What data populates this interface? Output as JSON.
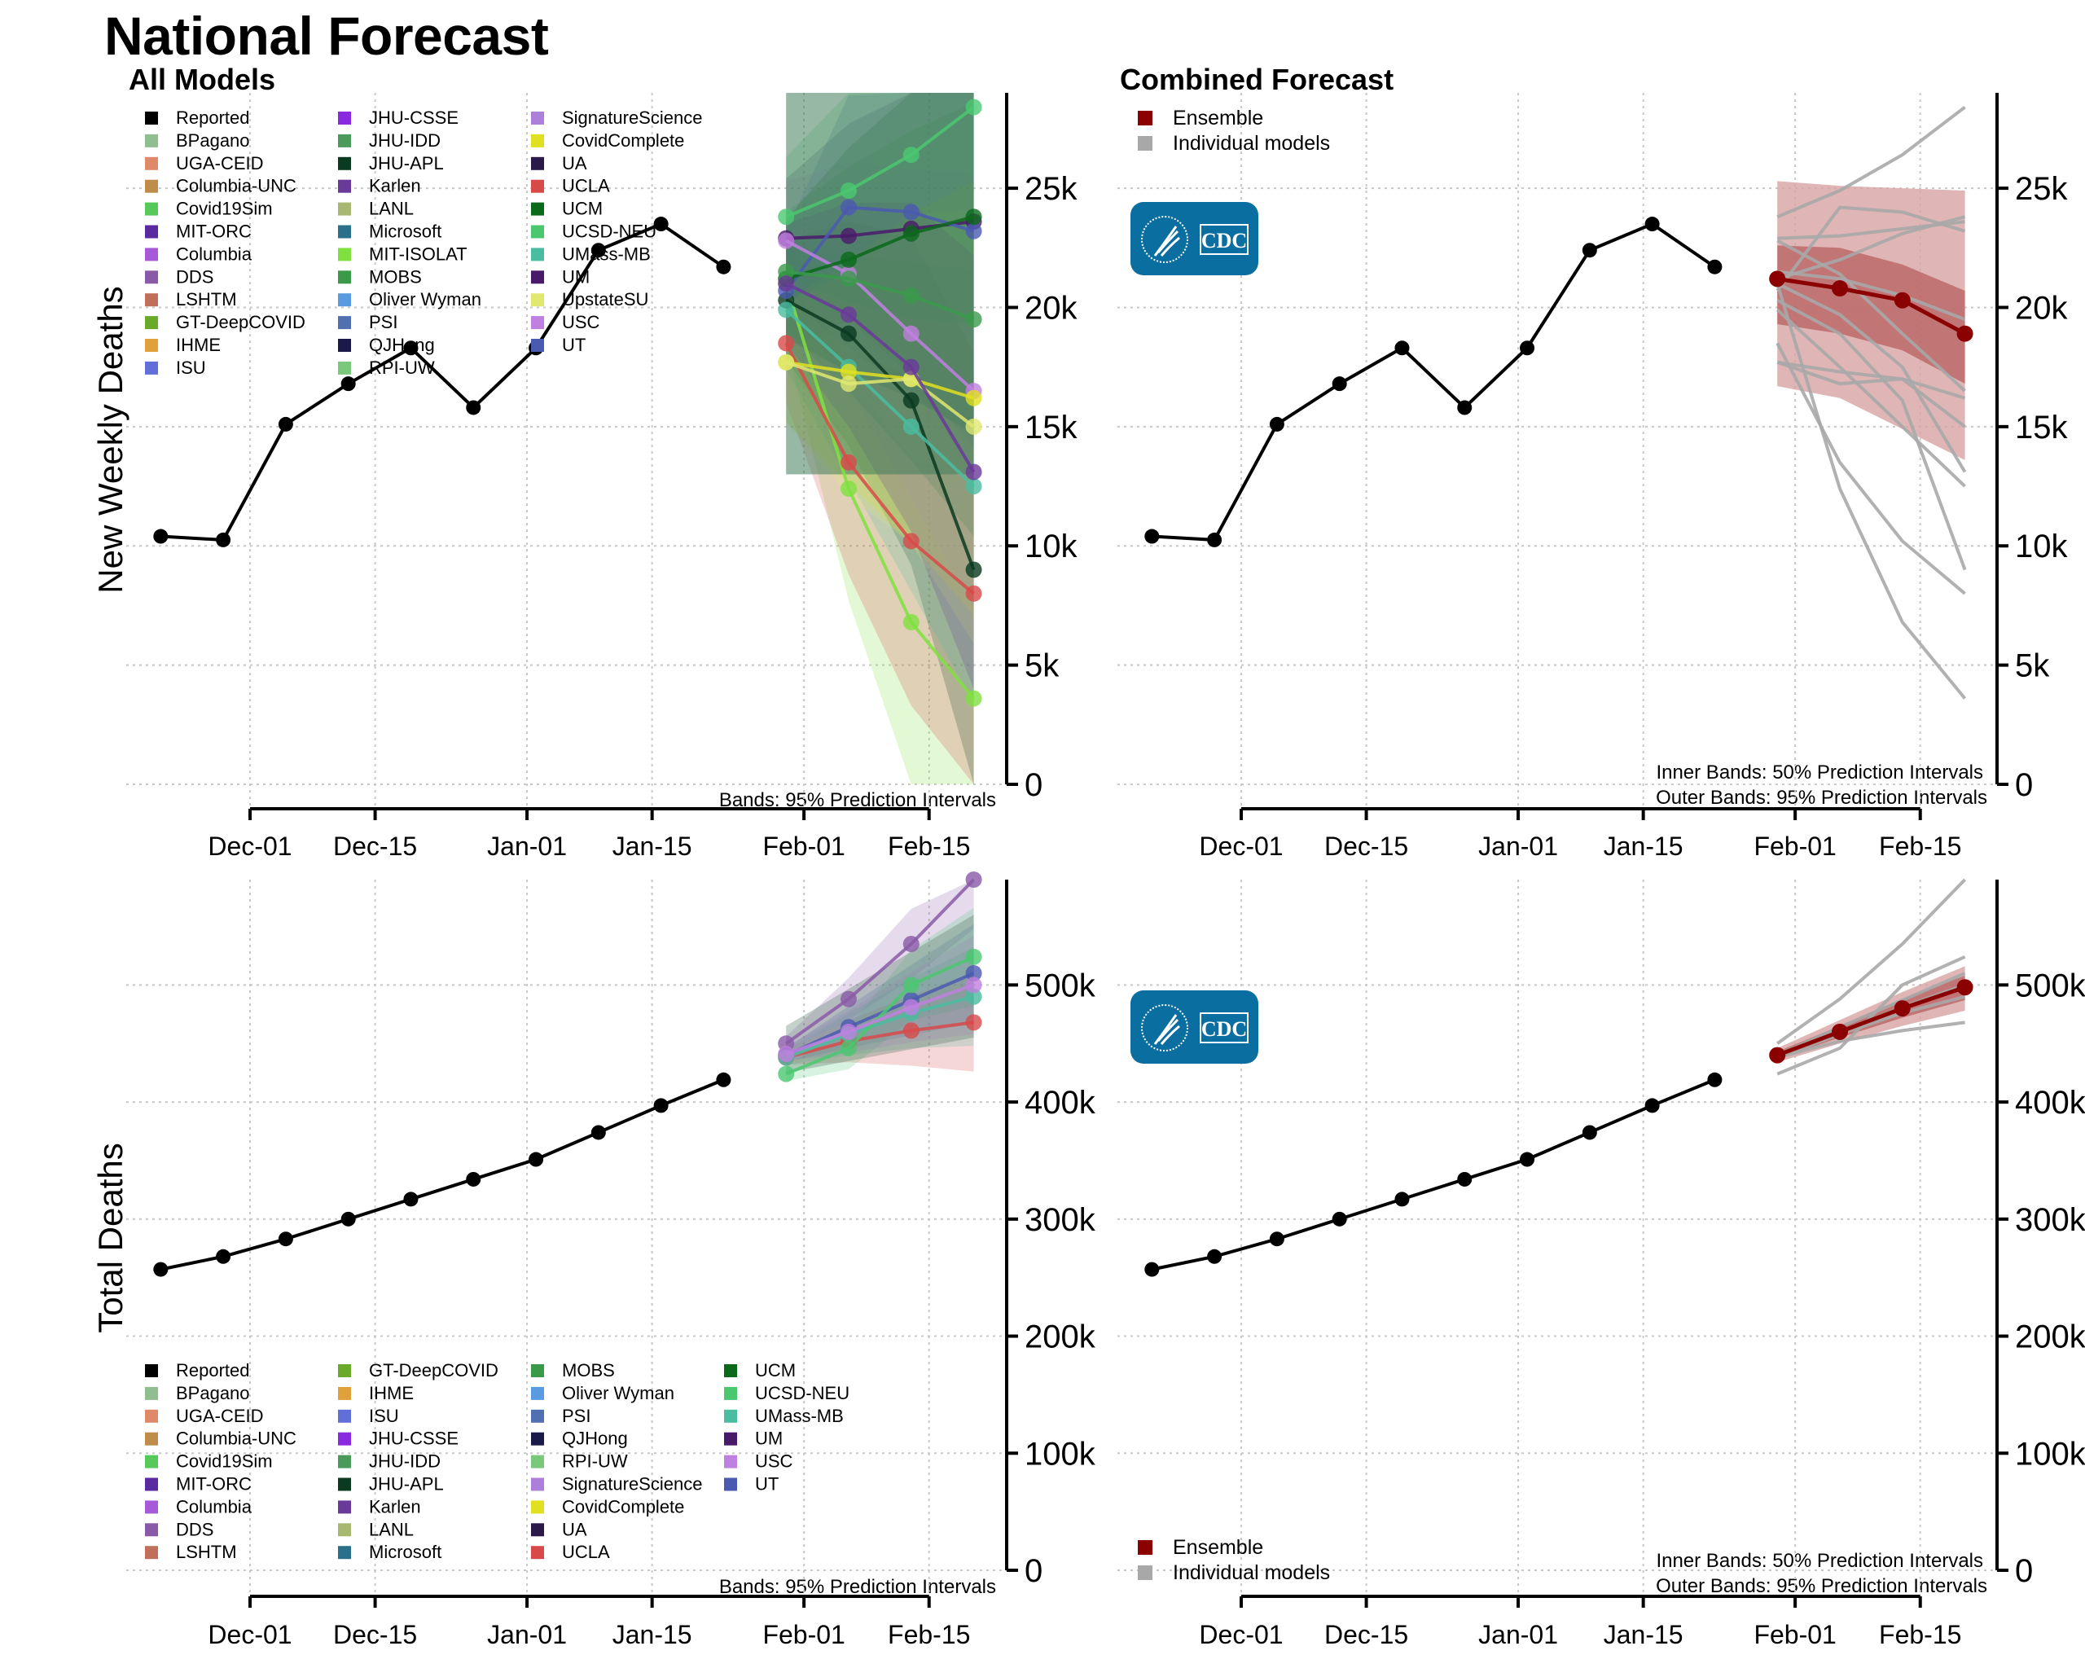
{
  "title": "National Forecast",
  "colors": {
    "reported": "#000000",
    "ensemble": "#8b0000",
    "ensemble_inner_band": "#b55a5a",
    "ensemble_outer_band": "#d8a3a3",
    "individual": "#a8a8a8",
    "cdc_logo_bg": "#0a6ea1"
  },
  "cdc_logo": {
    "text": "CDC",
    "icon": "hhs-eagle-icon"
  },
  "legend_all_models_top": [
    {
      "name": "Reported",
      "color": "#000000"
    },
    {
      "name": "BPagano",
      "color": "#8fbf8f"
    },
    {
      "name": "UGA-CEID",
      "color": "#de8a6a"
    },
    {
      "name": "Columbia-UNC",
      "color": "#bf8c4a"
    },
    {
      "name": "Covid19Sim",
      "color": "#55c95a"
    },
    {
      "name": "MIT-ORC",
      "color": "#5a2aa0"
    },
    {
      "name": "Columbia",
      "color": "#a65ad8"
    },
    {
      "name": "DDS",
      "color": "#8a5aa8"
    },
    {
      "name": "LSHTM",
      "color": "#c0705a"
    },
    {
      "name": "GT-DeepCOVID",
      "color": "#6aaa2a"
    },
    {
      "name": "IHME",
      "color": "#e0a03a"
    },
    {
      "name": "ISU",
      "color": "#6070d8"
    },
    {
      "name": "JHU-CSSE",
      "color": "#8a2ae0"
    },
    {
      "name": "JHU-IDD",
      "color": "#4a9a5a"
    },
    {
      "name": "JHU-APL",
      "color": "#0a3a20"
    },
    {
      "name": "Karlen",
      "color": "#6a3a9a"
    },
    {
      "name": "LANL",
      "color": "#a8b870"
    },
    {
      "name": "Microsoft",
      "color": "#2a708a"
    },
    {
      "name": "MIT-ISOLAT",
      "color": "#80e040"
    },
    {
      "name": "MOBS",
      "color": "#3a9a4a"
    },
    {
      "name": "Oliver Wyman",
      "color": "#5a9ae0"
    },
    {
      "name": "PSI",
      "color": "#5070b0"
    },
    {
      "name": "QJHong",
      "color": "#1a1a4a"
    },
    {
      "name": "RPI-UW",
      "color": "#7ac87a"
    },
    {
      "name": "SignatureScience",
      "color": "#ac80d8"
    },
    {
      "name": "CovidComplete",
      "color": "#e0e020"
    },
    {
      "name": "UA",
      "color": "#2a1a4a"
    },
    {
      "name": "UCLA",
      "color": "#d84a4a"
    },
    {
      "name": "UCM",
      "color": "#0a6a1a"
    },
    {
      "name": "UCSD-NEU",
      "color": "#4ac870"
    },
    {
      "name": "UMass-MB",
      "color": "#4abca0"
    },
    {
      "name": "UM",
      "color": "#4a1a6a"
    },
    {
      "name": "UpstateSU",
      "color": "#e0e870"
    },
    {
      "name": "USC",
      "color": "#c080e0"
    },
    {
      "name": "UT",
      "color": "#4a5ab0"
    }
  ],
  "legend_all_models_bottom": [
    "Reported",
    "BPagano",
    "UGA-CEID",
    "Columbia-UNC",
    "Covid19Sim",
    "MIT-ORC",
    "Columbia",
    "DDS",
    "LSHTM",
    "GT-DeepCOVID",
    "IHME",
    "ISU",
    "JHU-CSSE",
    "JHU-IDD",
    "JHU-APL",
    "Karlen",
    "LANL",
    "Microsoft",
    "MOBS",
    "Oliver Wyman",
    "PSI",
    "QJHong",
    "RPI-UW",
    "SignatureScience",
    "CovidComplete",
    "UA",
    "UCLA",
    "UCM",
    "UCSD-NEU",
    "UMass-MB",
    "UM",
    "USC",
    "UT"
  ],
  "legend_combined": [
    {
      "name": "Ensemble",
      "color": "#8b0000"
    },
    {
      "name": "Individual models",
      "color": "#a8a8a8"
    }
  ],
  "panels": {
    "tl": {
      "title": "All Models",
      "ylabel": "New Weekly Deaths",
      "note": "Bands: 95% Prediction Intervals"
    },
    "tr": {
      "title": "Combined Forecast",
      "note1": "Inner Bands: 50% Prediction Intervals",
      "note2": "Outer Bands: 95% Prediction Intervals"
    },
    "bl": {
      "ylabel": "Total Deaths",
      "note": "Bands: 95% Prediction Intervals"
    },
    "br": {
      "note1": "Inner Bands: 50% Prediction Intervals",
      "note2": "Outer Bands: 95% Prediction Intervals"
    }
  },
  "chart_data": [
    {
      "type": "line",
      "title": "All Models",
      "ylabel": "New Weekly Deaths",
      "xlabel": "",
      "x_ticks": [
        "Dec-01",
        "Dec-15",
        "Jan-01",
        "Jan-15",
        "Feb-01",
        "Feb-15"
      ],
      "y_ticks": [
        "0",
        "5k",
        "10k",
        "15k",
        "20k",
        "25k"
      ],
      "ylim": [
        0,
        29000
      ],
      "grid": true,
      "legend": "top-left",
      "reported": {
        "dates": [
          "Nov-21",
          "Nov-28",
          "Dec-05",
          "Dec-12",
          "Dec-19",
          "Dec-26",
          "Jan-02",
          "Jan-09",
          "Jan-16",
          "Jan-23"
        ],
        "values": [
          10400,
          10250,
          15100,
          16800,
          18300,
          15800,
          18300,
          22400,
          23500,
          21700
        ]
      },
      "forecast_dates": [
        "Jan-30",
        "Feb-06",
        "Feb-13",
        "Feb-20"
      ],
      "series": [
        {
          "name": "MIT-ISOLAT",
          "values": [
            21000,
            12400,
            6800,
            3600
          ]
        },
        {
          "name": "UCLA",
          "values": [
            18500,
            13500,
            10200,
            8000
          ]
        },
        {
          "name": "JHU-APL",
          "values": [
            20300,
            18900,
            16100,
            9000
          ]
        },
        {
          "name": "UM",
          "values": [
            22900,
            23000,
            23300,
            23600
          ]
        },
        {
          "name": "UT",
          "values": [
            20700,
            24200,
            24000,
            23200
          ]
        },
        {
          "name": "USC",
          "values": [
            22800,
            21400,
            18900,
            16500
          ]
        },
        {
          "name": "UMass-MB",
          "values": [
            19900,
            17500,
            15000,
            12500
          ]
        },
        {
          "name": "CovidComplete",
          "values": [
            17700,
            17300,
            17000,
            16200
          ]
        },
        {
          "name": "UpstateSU",
          "values": [
            17700,
            16800,
            17000,
            15000
          ]
        },
        {
          "name": "UCSD-NEU",
          "values": [
            23800,
            24900,
            26400,
            28400
          ]
        },
        {
          "name": "UCM",
          "values": [
            21200,
            22000,
            23100,
            23800
          ]
        },
        {
          "name": "MOBS",
          "values": [
            21500,
            21200,
            20500,
            19500
          ]
        },
        {
          "name": "Karlen",
          "values": [
            21000,
            19700,
            17500,
            13100
          ]
        }
      ],
      "note": "Bands: 95% Prediction Intervals"
    },
    {
      "type": "line",
      "title": "Combined Forecast",
      "ylabel": "",
      "x_ticks": [
        "Dec-01",
        "Dec-15",
        "Jan-01",
        "Jan-15",
        "Feb-01",
        "Feb-15"
      ],
      "y_ticks": [
        "0",
        "5k",
        "10k",
        "15k",
        "20k",
        "25k"
      ],
      "ylim": [
        0,
        29000
      ],
      "grid": true,
      "legend": "top-left",
      "reported": {
        "dates": [
          "Nov-21",
          "Nov-28",
          "Dec-05",
          "Dec-12",
          "Dec-19",
          "Dec-26",
          "Jan-02",
          "Jan-09",
          "Jan-16",
          "Jan-23"
        ],
        "values": [
          10400,
          10250,
          15100,
          16800,
          18300,
          15800,
          18300,
          22400,
          23500,
          21700
        ]
      },
      "ensemble": {
        "dates": [
          "Jan-30",
          "Feb-06",
          "Feb-13",
          "Feb-20"
        ],
        "values": [
          21200,
          20800,
          20300,
          18900
        ],
        "pi50_low": [
          19300,
          18900,
          18200,
          16800
        ],
        "pi50_high": [
          22600,
          22500,
          21800,
          20700
        ],
        "pi95_low": [
          16700,
          16200,
          14900,
          13600
        ],
        "pi95_high": [
          25300,
          25100,
          25000,
          24900
        ]
      },
      "note": "Inner Bands: 50% Prediction Intervals; Outer Bands: 95% Prediction Intervals"
    },
    {
      "type": "line",
      "title": "",
      "ylabel": "Total Deaths",
      "x_ticks": [
        "Dec-01",
        "Dec-15",
        "Jan-01",
        "Jan-15",
        "Feb-01",
        "Feb-15"
      ],
      "y_ticks": [
        "0",
        "100k",
        "200k",
        "300k",
        "400k",
        "500k"
      ],
      "ylim": [
        0,
        590000
      ],
      "grid": true,
      "legend": "bottom-left",
      "reported": {
        "dates": [
          "Nov-21",
          "Nov-28",
          "Dec-05",
          "Dec-12",
          "Dec-19",
          "Dec-26",
          "Jan-02",
          "Jan-09",
          "Jan-16",
          "Jan-23"
        ],
        "values": [
          257000,
          268000,
          283000,
          300000,
          317000,
          334000,
          351000,
          374000,
          397000,
          419000
        ]
      },
      "forecast_dates": [
        "Jan-30",
        "Feb-06",
        "Feb-13",
        "Feb-20"
      ],
      "series": [
        {
          "name": "DDS",
          "values": [
            450000,
            488000,
            535000,
            590000
          ]
        },
        {
          "name": "UT",
          "values": [
            440000,
            464000,
            487000,
            510000
          ]
        },
        {
          "name": "UCLA",
          "values": [
            438000,
            452000,
            461000,
            468000
          ]
        },
        {
          "name": "UMass-MB",
          "values": [
            438000,
            458000,
            476000,
            490000
          ]
        },
        {
          "name": "UCSD-NEU",
          "values": [
            424000,
            446000,
            500000,
            524000
          ]
        },
        {
          "name": "USC",
          "values": [
            441000,
            460000,
            481000,
            500000
          ]
        }
      ],
      "note": "Bands: 95% Prediction Intervals"
    },
    {
      "type": "line",
      "title": "",
      "ylabel": "",
      "x_ticks": [
        "Dec-01",
        "Dec-15",
        "Jan-01",
        "Jan-15",
        "Feb-01",
        "Feb-15"
      ],
      "y_ticks": [
        "0",
        "100k",
        "200k",
        "300k",
        "400k",
        "500k"
      ],
      "ylim": [
        0,
        590000
      ],
      "grid": true,
      "legend": "bottom-left",
      "reported": {
        "dates": [
          "Nov-21",
          "Nov-28",
          "Dec-05",
          "Dec-12",
          "Dec-19",
          "Dec-26",
          "Jan-02",
          "Jan-09",
          "Jan-16",
          "Jan-23"
        ],
        "values": [
          257000,
          268000,
          283000,
          300000,
          317000,
          334000,
          351000,
          374000,
          397000,
          419000
        ]
      },
      "ensemble": {
        "dates": [
          "Jan-30",
          "Feb-06",
          "Feb-13",
          "Feb-20"
        ],
        "values": [
          440000,
          460000,
          480000,
          498000
        ],
        "pi50_low": [
          437000,
          455000,
          472000,
          487000
        ],
        "pi50_high": [
          443000,
          465000,
          488000,
          508000
        ],
        "pi95_low": [
          434000,
          450000,
          465000,
          478000
        ],
        "pi95_high": [
          446000,
          470000,
          494000,
          516000
        ]
      },
      "note": "Inner Bands: 50% Prediction Intervals; Outer Bands: 95% Prediction Intervals"
    }
  ]
}
